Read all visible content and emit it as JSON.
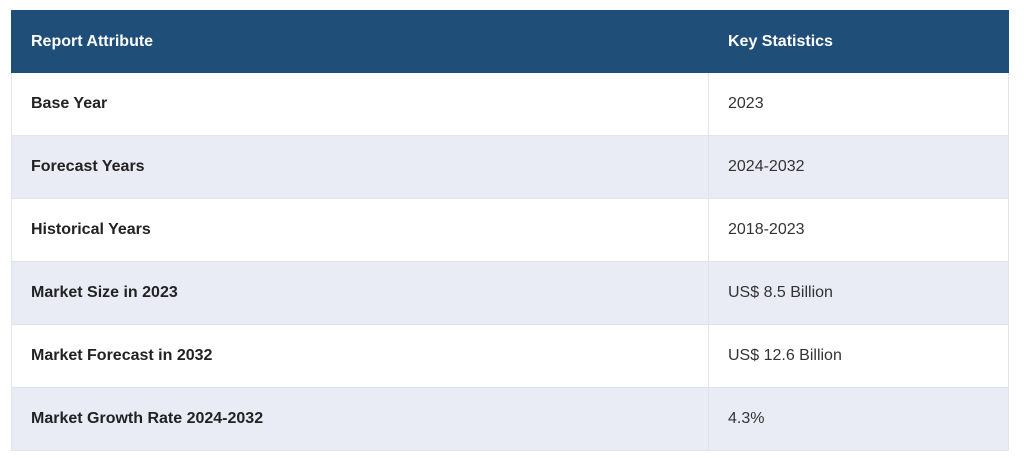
{
  "table": {
    "headers": {
      "attribute": "Report Attribute",
      "statistics": "Key Statistics"
    },
    "rows": [
      {
        "attribute": "Base Year",
        "value": "2023"
      },
      {
        "attribute": "Forecast Years",
        "value": "2024-2032"
      },
      {
        "attribute": "Historical Years",
        "value": "2018-2023"
      },
      {
        "attribute": "Market Size in 2023",
        "value": "US$ 8.5 Billion"
      },
      {
        "attribute": "Market Forecast in 2032",
        "value": "US$ 12.6 Billion"
      },
      {
        "attribute": "Market Growth Rate 2024-2032",
        "value": "4.3%"
      }
    ]
  },
  "colors": {
    "header_bg": "#1f4e79",
    "header_text": "#ffffff",
    "stripe_bg": "#e9ecf5",
    "row_bg": "#ffffff"
  }
}
